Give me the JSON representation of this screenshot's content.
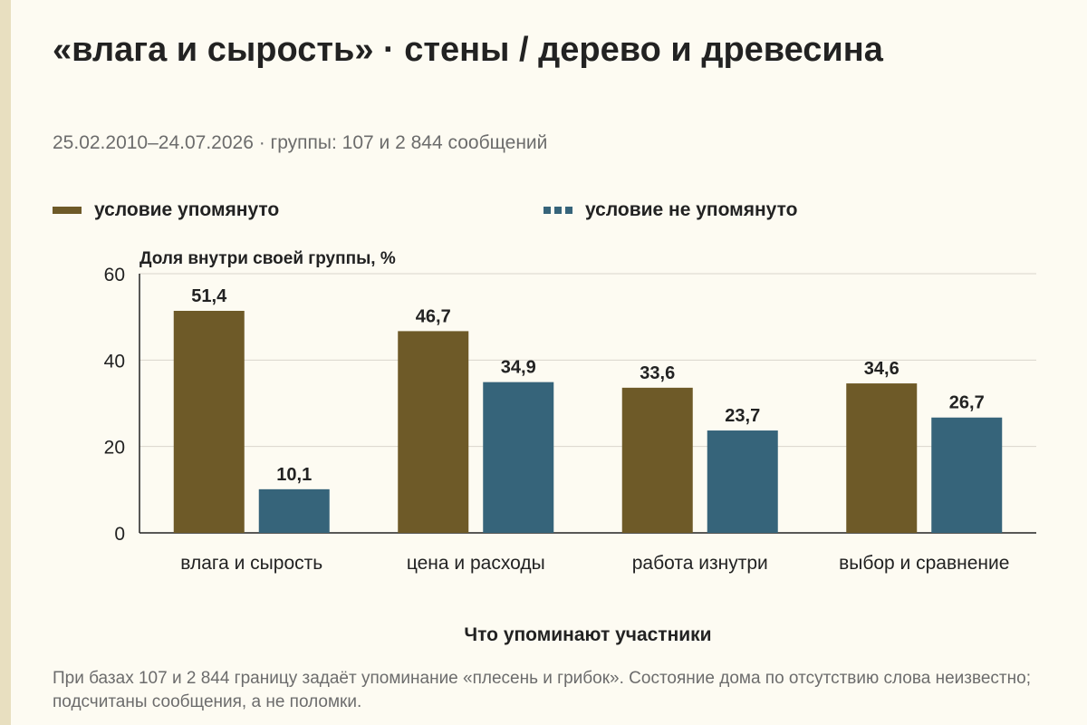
{
  "title": "«влага и сырость» · стены / дерево и древесина",
  "subtitle": "25.02.2010–24.07.2026 · группы: 107 и 2 844 сообщений",
  "legend": {
    "mentioned": "условие упомянуто",
    "not_mentioned": "условие не упомянуто"
  },
  "note": "При базах 107 и 2 844 границу задаёт упоминание «плесень и грибок». Состояние дома по отсутствию слова неизвестно; подсчитаны сообщения, а не поломки.",
  "colors": {
    "mentioned": "#6e5a28",
    "not_mentioned": "#36647a",
    "background": "#fdfbf2"
  },
  "chart_data": {
    "type": "bar",
    "ylabel": "Доля внутри своей группы, %",
    "xlabel": "Что упоминают участники",
    "categories": [
      "влага и сырость",
      "цена и расходы",
      "работа изнутри",
      "выбор и сравнение"
    ],
    "series": [
      {
        "name": "условие упомянуто",
        "values": [
          51.4,
          46.7,
          33.6,
          34.6
        ],
        "labels": [
          "51,4",
          "46,7",
          "33,6",
          "34,6"
        ]
      },
      {
        "name": "условие не упомянуто",
        "values": [
          10.1,
          34.9,
          23.7,
          26.7
        ],
        "labels": [
          "10,1",
          "34,9",
          "23,7",
          "26,7"
        ]
      }
    ],
    "ylim": [
      0,
      60
    ],
    "yticks": [
      0,
      20,
      40,
      60
    ],
    "grid": true,
    "legend_position": "top"
  }
}
